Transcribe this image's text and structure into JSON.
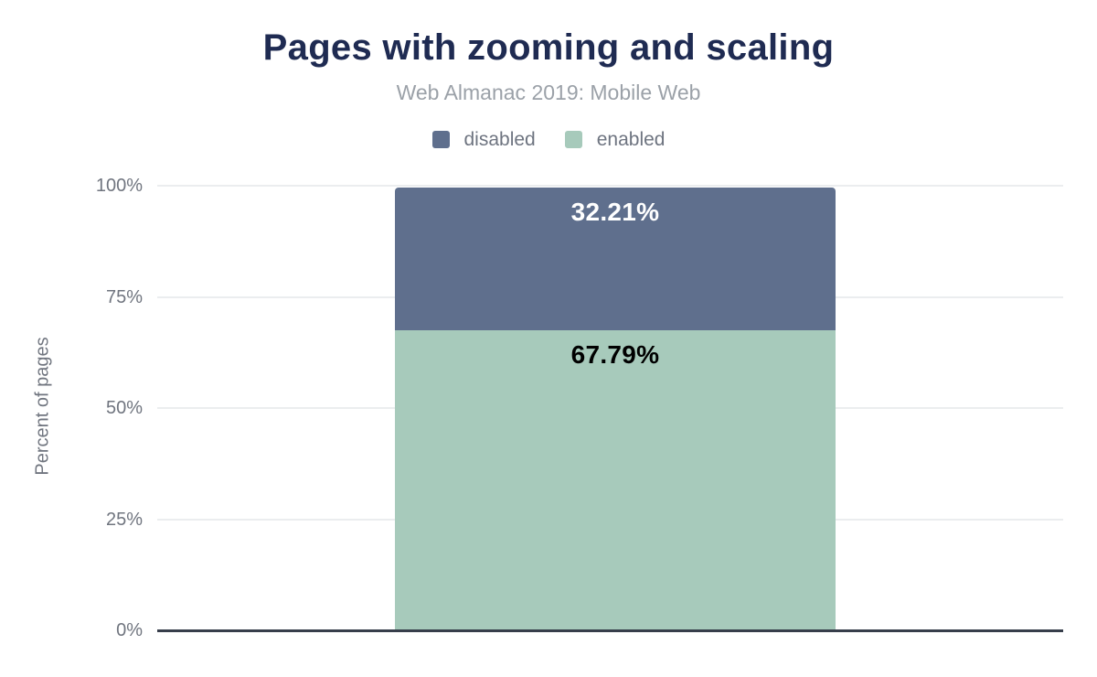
{
  "chart_data": {
    "type": "bar",
    "stacked": true,
    "title": "Pages with zooming and scaling",
    "subtitle": "Web Almanac 2019: Mobile Web",
    "categories": [
      ""
    ],
    "series": [
      {
        "name": "disabled",
        "values": [
          32.21
        ],
        "display_label": "32.21%",
        "color": "#5f6f8d",
        "label_color": "#ffffff"
      },
      {
        "name": "enabled",
        "values": [
          67.79
        ],
        "display_label": "67.79%",
        "color": "#a7cabb",
        "label_color": "#000000"
      }
    ],
    "bar_order_top_to_bottom": [
      "disabled",
      "enabled"
    ],
    "xlabel": "",
    "ylabel": "Percent of pages",
    "ylim": [
      0,
      100
    ],
    "yticks": [
      {
        "value": 0,
        "label": "0%"
      },
      {
        "value": 25,
        "label": "25%"
      },
      {
        "value": 50,
        "label": "50%"
      },
      {
        "value": 75,
        "label": "75%"
      },
      {
        "value": 100,
        "label": "100%"
      }
    ],
    "grid": true,
    "legend_position": "top"
  },
  "legend": {
    "items": [
      {
        "label": "disabled",
        "color": "#5f6f8d"
      },
      {
        "label": "enabled",
        "color": "#a7cabb"
      }
    ]
  },
  "colors": {
    "title_text": "#1f2b52",
    "subtitle_text": "#9ba1a8",
    "axis_text": "#70757f",
    "legend_text": "#6e7480",
    "gridline": "#ebedef",
    "axis_baseline": "#373e4b",
    "background": "#ffffff"
  }
}
